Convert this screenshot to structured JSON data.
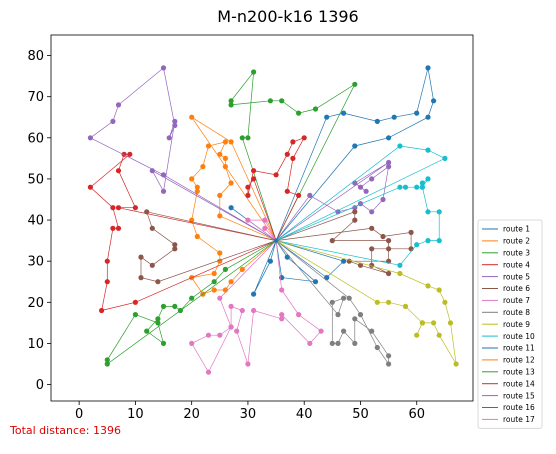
{
  "chart_data": {
    "type": "line",
    "title": "M-n200-k16 1396",
    "xlabel": "",
    "ylabel": "",
    "xlim": [
      -5,
      70
    ],
    "ylim": [
      -4,
      85
    ],
    "xticks": [
      0,
      10,
      20,
      30,
      40,
      50,
      60
    ],
    "yticks": [
      0,
      10,
      20,
      30,
      40,
      50,
      60,
      70,
      80
    ],
    "grid": false,
    "legend_position": "bottom-right",
    "depot": [
      35,
      35
    ],
    "footer": "Total distance: 1396",
    "series": [
      {
        "name": "route 1",
        "color": "#1f77b4",
        "points": [
          [
            35,
            35
          ],
          [
            27,
            43
          ],
          [
            35,
            35
          ],
          [
            31,
            22
          ],
          [
            34,
            30
          ],
          [
            35,
            35
          ],
          [
            37,
            31
          ],
          [
            42,
            25
          ],
          [
            36,
            26
          ],
          [
            35,
            35
          ],
          [
            44,
            26
          ],
          [
            47,
            30
          ],
          [
            35,
            35
          ],
          [
            44,
            65
          ],
          [
            47,
            66
          ],
          [
            53,
            64
          ],
          [
            56,
            65
          ],
          [
            60,
            66
          ],
          [
            62,
            77
          ],
          [
            63,
            69
          ],
          [
            62,
            65
          ],
          [
            55,
            60
          ],
          [
            49,
            58
          ],
          [
            35,
            35
          ]
        ]
      },
      {
        "name": "route 2",
        "color": "#ff7f0e",
        "points": [
          [
            35,
            35
          ],
          [
            29,
            28
          ],
          [
            27,
            25
          ],
          [
            26,
            23
          ],
          [
            24,
            23
          ],
          [
            22,
            22
          ],
          [
            20,
            26
          ],
          [
            24,
            27
          ],
          [
            25,
            30
          ],
          [
            25,
            32
          ],
          [
            21,
            36
          ],
          [
            20,
            40
          ],
          [
            21,
            47
          ],
          [
            21,
            48
          ],
          [
            20,
            50
          ],
          [
            22,
            53
          ],
          [
            23,
            58
          ],
          [
            26,
            59
          ],
          [
            25,
            56
          ],
          [
            26,
            55
          ],
          [
            26,
            53
          ],
          [
            27,
            49
          ],
          [
            25,
            46
          ],
          [
            25,
            41
          ],
          [
            35,
            35
          ],
          [
            20,
            65
          ],
          [
            27,
            59
          ],
          [
            35,
            35
          ]
        ]
      },
      {
        "name": "route 3",
        "color": "#2ca02c",
        "points": [
          [
            35,
            35
          ],
          [
            29,
            60
          ],
          [
            30,
            60
          ],
          [
            31,
            76
          ],
          [
            27,
            69
          ],
          [
            27,
            68
          ],
          [
            34,
            69
          ],
          [
            36,
            69
          ],
          [
            39,
            66
          ],
          [
            42,
            67
          ],
          [
            49,
            73
          ],
          [
            35,
            35
          ]
        ]
      },
      {
        "name": "route 4",
        "color": "#d62728",
        "points": [
          [
            35,
            35
          ],
          [
            31,
            50
          ],
          [
            30,
            48
          ],
          [
            30,
            46
          ],
          [
            31,
            52
          ],
          [
            35,
            51
          ],
          [
            37,
            56
          ],
          [
            38,
            59
          ],
          [
            40,
            60
          ],
          [
            38,
            55
          ],
          [
            37,
            47
          ],
          [
            39,
            46
          ],
          [
            35,
            35
          ],
          [
            7,
            43
          ],
          [
            10,
            43
          ],
          [
            7,
            52
          ],
          [
            8,
            56
          ],
          [
            9,
            56
          ],
          [
            2,
            48
          ],
          [
            6,
            43
          ],
          [
            7,
            38
          ],
          [
            6,
            38
          ],
          [
            5,
            30
          ],
          [
            5,
            25
          ],
          [
            4,
            18
          ],
          [
            10,
            20
          ],
          [
            35,
            35
          ]
        ]
      },
      {
        "name": "route 5",
        "color": "#9467bd",
        "points": [
          [
            35,
            35
          ],
          [
            41,
            46
          ],
          [
            46,
            42
          ],
          [
            49,
            43
          ],
          [
            50,
            44
          ],
          [
            52,
            42
          ],
          [
            54,
            45
          ],
          [
            55,
            53
          ],
          [
            52,
            50
          ],
          [
            50,
            48
          ],
          [
            51,
            47
          ],
          [
            49,
            49
          ],
          [
            55,
            54
          ],
          [
            35,
            35
          ]
        ]
      },
      {
        "name": "route 6",
        "color": "#8c564b",
        "points": [
          [
            35,
            35
          ],
          [
            12,
            42
          ],
          [
            13,
            38
          ],
          [
            17,
            34
          ],
          [
            17,
            33
          ],
          [
            13,
            29
          ],
          [
            11,
            31
          ],
          [
            11,
            26
          ],
          [
            14,
            25
          ],
          [
            35,
            35
          ],
          [
            52,
            38
          ],
          [
            54,
            36
          ],
          [
            59,
            37
          ],
          [
            59,
            33
          ],
          [
            55,
            33
          ],
          [
            52,
            33
          ],
          [
            52,
            29
          ],
          [
            55,
            27
          ],
          [
            50,
            29
          ],
          [
            48,
            30
          ],
          [
            55,
            30
          ],
          [
            55,
            35
          ],
          [
            45,
            35
          ],
          [
            49,
            40
          ],
          [
            49,
            42
          ],
          [
            35,
            35
          ]
        ]
      },
      {
        "name": "route 7",
        "color": "#e377c2",
        "points": [
          [
            35,
            35
          ],
          [
            30,
            40
          ],
          [
            33,
            40
          ],
          [
            35,
            35
          ],
          [
            33,
            38
          ],
          [
            35,
            35
          ],
          [
            36,
            23
          ],
          [
            39,
            17
          ],
          [
            43,
            13
          ],
          [
            41,
            10
          ],
          [
            36,
            17
          ],
          [
            36,
            16
          ],
          [
            31,
            18
          ],
          [
            30,
            5
          ],
          [
            28,
            13
          ],
          [
            29,
            18
          ],
          [
            27,
            19
          ],
          [
            27,
            14
          ],
          [
            25,
            12
          ],
          [
            23,
            12
          ],
          [
            20,
            10
          ],
          [
            23,
            3
          ],
          [
            27,
            14
          ],
          [
            25,
            21
          ],
          [
            35,
            35
          ]
        ]
      },
      {
        "name": "route 8",
        "color": "#7f7f7f",
        "points": [
          [
            35,
            35
          ],
          [
            46,
            17
          ],
          [
            47,
            21
          ],
          [
            45,
            20
          ],
          [
            45,
            10
          ],
          [
            46,
            10
          ],
          [
            47,
            13
          ],
          [
            49,
            10
          ],
          [
            49,
            16
          ],
          [
            52,
            13
          ],
          [
            55,
            7
          ],
          [
            55,
            5
          ],
          [
            53,
            9
          ],
          [
            50,
            17
          ],
          [
            48,
            21
          ],
          [
            35,
            35
          ]
        ]
      },
      {
        "name": "route 9",
        "color": "#bcbd22",
        "points": [
          [
            35,
            35
          ],
          [
            57,
            27
          ],
          [
            62,
            24
          ],
          [
            64,
            23
          ],
          [
            65,
            20
          ],
          [
            66,
            15
          ],
          [
            67,
            5
          ],
          [
            64,
            12
          ],
          [
            63,
            15
          ],
          [
            61,
            15
          ],
          [
            60,
            12
          ],
          [
            61,
            15
          ],
          [
            58,
            19
          ],
          [
            55,
            20
          ],
          [
            53,
            20
          ],
          [
            35,
            35
          ]
        ]
      },
      {
        "name": "route 10",
        "color": "#17becf",
        "points": [
          [
            35,
            35
          ],
          [
            57,
            48
          ],
          [
            58,
            48
          ],
          [
            60,
            48
          ],
          [
            61,
            48
          ],
          [
            61,
            49
          ],
          [
            62,
            50
          ],
          [
            61,
            48
          ],
          [
            62,
            42
          ],
          [
            64,
            42
          ],
          [
            64,
            35
          ],
          [
            62,
            35
          ],
          [
            60,
            34
          ],
          [
            57,
            29
          ],
          [
            35,
            35
          ],
          [
            57,
            58
          ],
          [
            62,
            57
          ],
          [
            65,
            55
          ],
          [
            35,
            35
          ]
        ]
      },
      {
        "name": "route 11",
        "color": "#1f77b4",
        "points": [
          [
            35,
            35
          ],
          [
            35,
            35
          ]
        ]
      },
      {
        "name": "route 12",
        "color": "#ff7f0e",
        "points": [
          [
            35,
            35
          ],
          [
            35,
            35
          ]
        ]
      },
      {
        "name": "route 13",
        "color": "#2ca02c",
        "points": [
          [
            35,
            35
          ],
          [
            26,
            28
          ],
          [
            24,
            25
          ],
          [
            20,
            21
          ],
          [
            18,
            18
          ],
          [
            17,
            19
          ],
          [
            15,
            19
          ],
          [
            14,
            16
          ],
          [
            12,
            13
          ],
          [
            15,
            10
          ],
          [
            14,
            15
          ],
          [
            10,
            17
          ],
          [
            5,
            6
          ],
          [
            5,
            5
          ],
          [
            35,
            35
          ]
        ]
      },
      {
        "name": "route 14",
        "color": "#d62728",
        "points": [
          [
            35,
            35
          ],
          [
            35,
            35
          ]
        ]
      },
      {
        "name": "route 15",
        "color": "#9467bd",
        "points": [
          [
            35,
            35
          ],
          [
            13,
            52
          ],
          [
            15,
            47
          ],
          [
            17,
            64
          ],
          [
            16,
            60
          ],
          [
            17,
            63
          ],
          [
            15,
            77
          ],
          [
            7,
            68
          ],
          [
            6,
            64
          ],
          [
            2,
            60
          ],
          [
            15,
            51
          ],
          [
            35,
            35
          ]
        ]
      },
      {
        "name": "route 16",
        "color": "#8c564b",
        "points": [
          [
            35,
            35
          ],
          [
            35,
            35
          ]
        ]
      },
      {
        "name": "route 17",
        "color": "#e377c2",
        "points": [
          [
            35,
            35
          ],
          [
            35,
            35
          ]
        ]
      }
    ]
  }
}
